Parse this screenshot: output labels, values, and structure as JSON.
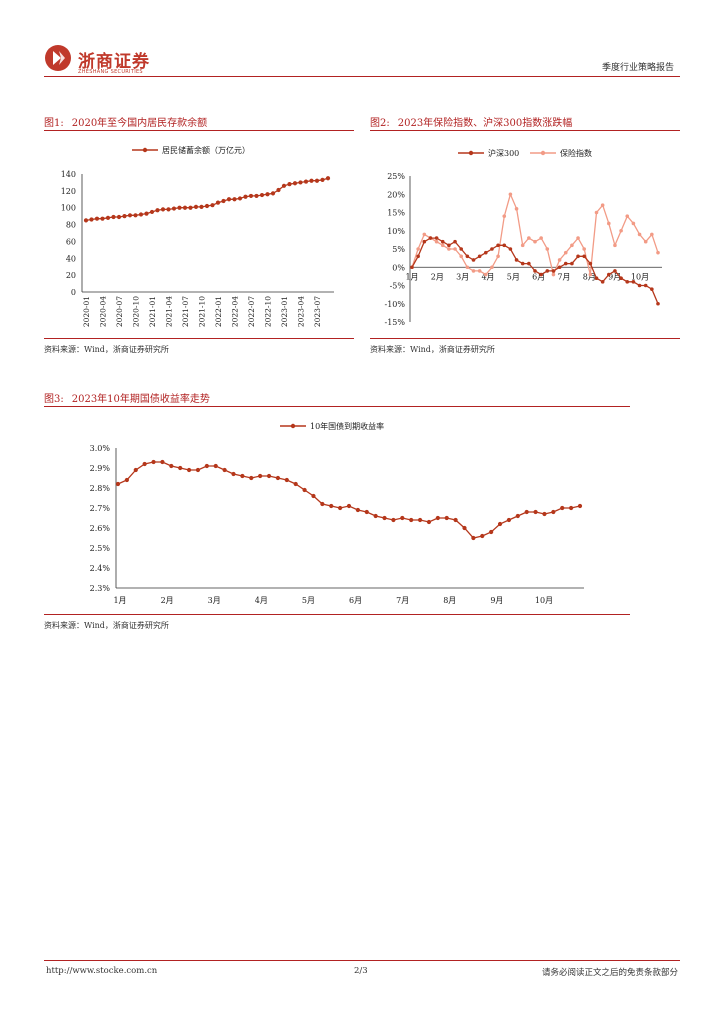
{
  "header": {
    "logo_name": "浙商证券",
    "logo_sub": "ZHESHANG SECURITIES",
    "report_type": "季度行业策略报告",
    "brand_color": "#c0392b"
  },
  "figures": [
    {
      "label": "图1:",
      "title": "2020年至今国内居民存款余额",
      "source": "资料来源：Wind，浙商证券研究所"
    },
    {
      "label": "图2:",
      "title": "2023年保险指数、沪深300指数涨跌幅",
      "source": "资料来源：Wind，浙商证券研究所"
    },
    {
      "label": "图3:",
      "title": "2023年10年期国债收益率走势",
      "source": "资料来源：Wind，浙商证券研究所"
    }
  ],
  "footer": {
    "url": "http://www.stocke.com.cn",
    "page": "2/3",
    "disclaimer": "请务必阅读正文之后的免责条款部分"
  },
  "chart_data": [
    {
      "type": "line",
      "title": "2020年至今国内居民存款余额",
      "legend": "居民储蓄余额（万亿元）",
      "color": "#b5371b",
      "ylim": [
        0,
        140
      ],
      "yticks": [
        "0",
        "20",
        "40",
        "60",
        "80",
        "100",
        "120",
        "140"
      ],
      "xticks": [
        "2020-01",
        "2020-04",
        "2020-07",
        "2020-10",
        "2021-01",
        "2021-04",
        "2021-07",
        "2021-10",
        "2022-01",
        "2022-04",
        "2022-07",
        "2022-10",
        "2023-01",
        "2023-04",
        "2023-07"
      ],
      "x": [
        "2020-01",
        "2020-02",
        "2020-03",
        "2020-04",
        "2020-05",
        "2020-06",
        "2020-07",
        "2020-08",
        "2020-09",
        "2020-10",
        "2020-11",
        "2020-12",
        "2021-01",
        "2021-02",
        "2021-03",
        "2021-04",
        "2021-05",
        "2021-06",
        "2021-07",
        "2021-08",
        "2021-09",
        "2021-10",
        "2021-11",
        "2021-12",
        "2022-01",
        "2022-02",
        "2022-03",
        "2022-04",
        "2022-05",
        "2022-06",
        "2022-07",
        "2022-08",
        "2022-09",
        "2022-10",
        "2022-11",
        "2022-12",
        "2023-01",
        "2023-02",
        "2023-03",
        "2023-04",
        "2023-05",
        "2023-06",
        "2023-07",
        "2023-08",
        "2023-09"
      ],
      "values": [
        85,
        86,
        87,
        87,
        88,
        89,
        89,
        90,
        91,
        91,
        92,
        93,
        95,
        97,
        98,
        98,
        99,
        100,
        100,
        100,
        101,
        101,
        102,
        103,
        106,
        108,
        110,
        110,
        111,
        113,
        114,
        114,
        115,
        116,
        117,
        121,
        126,
        128,
        129,
        130,
        131,
        132,
        132,
        133,
        135
      ]
    },
    {
      "type": "line",
      "title": "2023年保险指数、沪深300指数涨跌幅",
      "ylim": [
        -15,
        25
      ],
      "yticks": [
        "-15%",
        "-10%",
        "-5%",
        "0%",
        "5%",
        "10%",
        "15%",
        "20%",
        "25%"
      ],
      "xticks": [
        "1月",
        "2月",
        "3月",
        "4月",
        "5月",
        "6月",
        "7月",
        "8月",
        "9月",
        "10月"
      ],
      "series": [
        {
          "name": "沪深300",
          "color": "#b5371b",
          "values": [
            0,
            3,
            7,
            8,
            8,
            7,
            6,
            7,
            5,
            3,
            2,
            3,
            4,
            5,
            6,
            6,
            5,
            2,
            1,
            1,
            -1,
            -2,
            -1,
            -1,
            0,
            1,
            1,
            3,
            3,
            1,
            -3,
            -4,
            -2,
            -1,
            -3,
            -4,
            -4,
            -5,
            -5,
            -6,
            -10
          ]
        },
        {
          "name": "保险指数",
          "color": "#f29b86",
          "values": [
            0,
            5,
            9,
            8,
            7,
            6,
            5,
            5,
            3,
            0,
            -1,
            -1,
            -2,
            0,
            3,
            14,
            20,
            16,
            6,
            8,
            7,
            8,
            5,
            -2,
            2,
            4,
            6,
            8,
            5,
            -2,
            15,
            17,
            12,
            6,
            10,
            14,
            12,
            9,
            7,
            9,
            4
          ]
        }
      ]
    },
    {
      "type": "line",
      "title": "2023年10年期国债收益率走势",
      "legend": "10年国债到期收益率",
      "color": "#b5371b",
      "ylim": [
        2.3,
        3.0
      ],
      "yticks": [
        "2.3%",
        "2.4%",
        "2.5%",
        "2.6%",
        "2.7%",
        "2.8%",
        "2.9%",
        "3.0%"
      ],
      "xticks": [
        "1月",
        "2月",
        "3月",
        "4月",
        "5月",
        "6月",
        "7月",
        "8月",
        "9月",
        "10月"
      ],
      "values": [
        2.82,
        2.84,
        2.89,
        2.92,
        2.93,
        2.93,
        2.91,
        2.9,
        2.89,
        2.89,
        2.91,
        2.91,
        2.89,
        2.87,
        2.86,
        2.85,
        2.86,
        2.86,
        2.85,
        2.84,
        2.82,
        2.79,
        2.76,
        2.72,
        2.71,
        2.7,
        2.71,
        2.69,
        2.68,
        2.66,
        2.65,
        2.64,
        2.65,
        2.64,
        2.64,
        2.63,
        2.65,
        2.65,
        2.64,
        2.6,
        2.55,
        2.56,
        2.58,
        2.62,
        2.64,
        2.66,
        2.68,
        2.68,
        2.67,
        2.68,
        2.7,
        2.7,
        2.71
      ]
    }
  ]
}
